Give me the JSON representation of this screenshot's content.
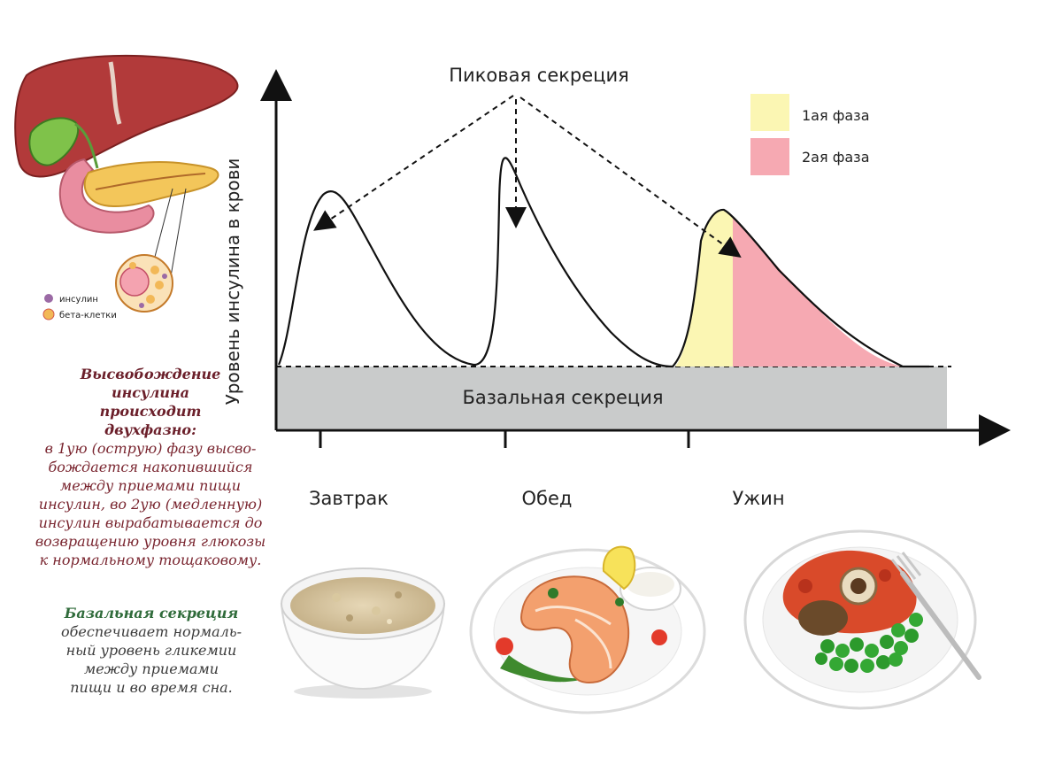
{
  "diagram": {
    "y_axis_label": "Уровень инсулина в крови",
    "peak_label": "Пиковая секреция",
    "basal_label": "Базальная секреция",
    "legend": [
      {
        "label": "1ая фаза",
        "color": "#fbf6b3"
      },
      {
        "label": "2ая фаза",
        "color": "#f6a9b2"
      }
    ],
    "meals": [
      {
        "label": "Завтрак",
        "icon": "oatmeal-bowl-icon"
      },
      {
        "label": "Обед",
        "icon": "salmon-plate-icon"
      },
      {
        "label": "Ужин",
        "icon": "meat-peas-plate-icon"
      }
    ],
    "organ_legend": [
      {
        "label": "инсулин",
        "color": "#9b6aa5"
      },
      {
        "label": "бета-клетки",
        "color": "#f2b857"
      }
    ],
    "basal_color": "#c9cbcb",
    "curve_color": "#111111"
  },
  "notes": {
    "release_title": [
      "Высвобождение",
      "инсулина",
      "происходит",
      "двухфазно:"
    ],
    "release_body": [
      "в 1ую (острую) фазу высво-",
      "бождается накопившийся",
      "между приемами пищи",
      "инсулин, во 2ую (медленную)",
      "инсулин вырабатывается до",
      "возвращению уровня глюкозы",
      "к нормальному тощаковому."
    ],
    "basal_title": [
      "Базальная секреция"
    ],
    "basal_body": [
      "обеспечивает нормаль-",
      "ный уровень гликемии",
      "между приемами",
      "пищи и во время сна."
    ]
  }
}
